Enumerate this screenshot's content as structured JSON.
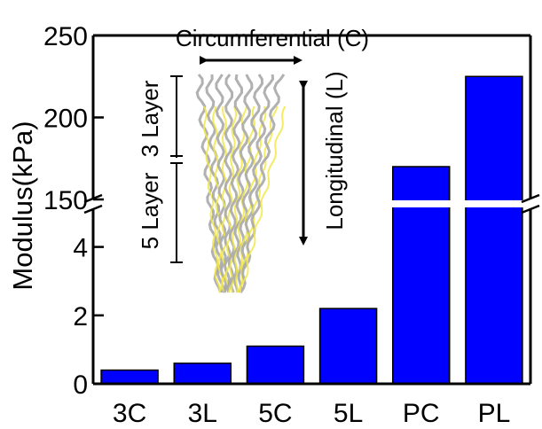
{
  "chart_data": {
    "type": "bar",
    "categories": [
      "3C",
      "3L",
      "5C",
      "5L",
      "PC",
      "PL"
    ],
    "values": [
      0.4,
      0.6,
      1.1,
      2.2,
      170,
      225
    ],
    "ylabel": "Modulus(kPa)",
    "axis_break": {
      "lower_range": [
        0,
        5
      ],
      "upper_range": [
        150,
        250
      ]
    },
    "lower_ticks": [
      0,
      2,
      4
    ],
    "upper_ticks": [
      150,
      200,
      250
    ],
    "bar_color": "#0000ff",
    "grid": false,
    "annotations": {
      "circumferential": "Circumferential (C)",
      "longitudinal": "Longitudinal (L)",
      "layer3": "3 Layer",
      "layer5": "5 Layer"
    }
  }
}
